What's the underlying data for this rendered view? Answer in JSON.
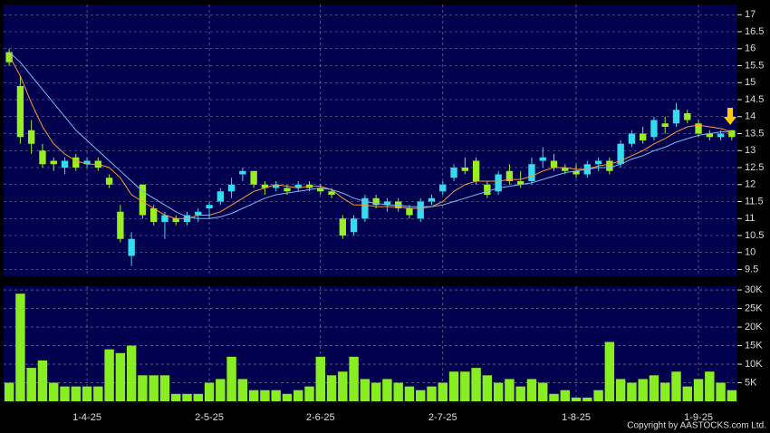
{
  "chart_data": [
    {
      "type": "candlestick",
      "open": [
        15.9,
        14.9,
        13.6,
        13.0,
        12.7,
        12.5,
        12.8,
        12.6,
        12.7,
        12.2,
        11.2,
        9.9,
        12.0,
        11.3,
        10.9,
        11.0,
        10.9,
        11.1,
        11.3,
        11.5,
        11.8,
        12.3,
        12.4,
        12.0,
        11.9,
        11.9,
        11.9,
        12.0,
        11.9,
        11.8,
        11.0,
        10.6,
        11.0,
        11.6,
        11.4,
        11.5,
        11.3,
        11.0,
        11.5,
        11.8,
        12.2,
        12.5,
        12.7,
        12.0,
        11.8,
        12.4,
        12.1,
        12.1,
        12.7,
        12.7,
        12.5,
        12.4,
        12.3,
        12.6,
        12.7,
        12.6,
        13.2,
        13.5,
        13.4,
        13.8,
        13.8,
        14.1,
        13.8,
        13.5,
        13.4,
        13.6
      ],
      "high": [
        16.0,
        15.2,
        13.9,
        13.2,
        12.8,
        12.8,
        12.9,
        12.8,
        12.8,
        12.3,
        11.4,
        10.6,
        12.0,
        11.4,
        11.2,
        11.1,
        11.2,
        11.3,
        11.5,
        11.9,
        12.2,
        12.5,
        12.4,
        12.1,
        12.1,
        12.0,
        12.1,
        12.1,
        12.0,
        11.9,
        11.1,
        11.1,
        11.7,
        11.7,
        11.6,
        11.6,
        11.4,
        11.6,
        11.7,
        12.1,
        12.6,
        12.8,
        12.8,
        12.1,
        12.4,
        12.6,
        12.4,
        12.8,
        13.1,
        12.9,
        12.6,
        12.6,
        12.7,
        12.8,
        12.8,
        13.3,
        13.6,
        13.7,
        14.0,
        14.0,
        14.4,
        14.2,
        13.9,
        13.6,
        13.6,
        13.6
      ],
      "low": [
        15.5,
        13.2,
        12.9,
        12.5,
        12.4,
        12.3,
        12.4,
        12.5,
        12.4,
        11.9,
        10.3,
        9.6,
        11.0,
        10.8,
        10.4,
        10.8,
        10.8,
        10.9,
        11.0,
        11.4,
        11.6,
        12.1,
        11.9,
        11.7,
        11.8,
        11.7,
        11.8,
        11.8,
        11.7,
        11.6,
        10.4,
        10.5,
        10.9,
        11.3,
        11.2,
        11.2,
        11.0,
        10.9,
        11.4,
        11.7,
        12.1,
        12.3,
        12.0,
        11.6,
        11.7,
        12.0,
        11.9,
        12.0,
        12.5,
        12.4,
        12.3,
        12.2,
        12.2,
        12.4,
        12.3,
        12.5,
        13.1,
        13.2,
        13.3,
        13.5,
        13.7,
        13.8,
        13.4,
        13.3,
        13.3,
        13.3
      ],
      "close": [
        15.6,
        13.4,
        13.2,
        12.6,
        12.6,
        12.7,
        12.5,
        12.7,
        12.5,
        12.0,
        10.4,
        10.4,
        11.1,
        10.9,
        11.1,
        10.9,
        11.1,
        11.2,
        11.4,
        11.8,
        12.0,
        12.4,
        12.0,
        11.9,
        12.0,
        11.8,
        12.0,
        11.9,
        11.8,
        11.7,
        10.5,
        11.0,
        11.6,
        11.4,
        11.5,
        11.3,
        11.1,
        11.5,
        11.6,
        12.0,
        12.5,
        12.4,
        12.1,
        11.7,
        12.3,
        12.1,
        12.0,
        12.6,
        12.8,
        12.5,
        12.4,
        12.3,
        12.6,
        12.7,
        12.4,
        13.2,
        13.5,
        13.3,
        13.9,
        13.7,
        14.2,
        13.9,
        13.5,
        13.4,
        13.5,
        13.4
      ],
      "up_color": "#33ddee",
      "down_color": "#99ee22",
      "lines": [
        {
          "color": "#ff9933",
          "values": [
            15.8,
            15.2,
            14.4,
            13.7,
            13.2,
            12.9,
            12.7,
            12.6,
            12.6,
            12.5,
            12.2,
            11.7,
            11.5,
            11.3,
            11.1,
            11.0,
            11.0,
            11.1,
            11.1,
            11.2,
            11.4,
            11.6,
            11.8,
            11.9,
            12.0,
            11.95,
            11.9,
            11.95,
            11.95,
            11.85,
            11.6,
            11.4,
            11.4,
            11.35,
            11.35,
            11.35,
            11.3,
            11.3,
            11.35,
            11.5,
            11.8,
            12.0,
            12.1,
            12.1,
            12.1,
            12.15,
            12.15,
            12.25,
            12.4,
            12.5,
            12.5,
            12.45,
            12.45,
            12.55,
            12.6,
            12.7,
            12.85,
            13.0,
            13.2,
            13.35,
            13.55,
            13.7,
            13.75,
            13.7,
            13.65,
            13.55
          ]
        },
        {
          "color": "#77bbee",
          "values": [
            15.9,
            15.6,
            15.2,
            14.8,
            14.4,
            14.0,
            13.6,
            13.3,
            13.0,
            12.7,
            12.4,
            12.1,
            11.8,
            11.6,
            11.4,
            11.2,
            11.05,
            11.0,
            11.0,
            11.05,
            11.15,
            11.3,
            11.45,
            11.6,
            11.7,
            11.75,
            11.8,
            11.85,
            11.9,
            11.85,
            11.75,
            11.6,
            11.5,
            11.45,
            11.4,
            11.4,
            11.35,
            11.35,
            11.35,
            11.4,
            11.5,
            11.6,
            11.7,
            11.8,
            11.9,
            11.95,
            12.0,
            12.05,
            12.15,
            12.25,
            12.35,
            12.4,
            12.45,
            12.5,
            12.5,
            12.6,
            12.75,
            12.85,
            13.0,
            13.1,
            13.25,
            13.35,
            13.45,
            13.5,
            13.55,
            13.55
          ]
        }
      ],
      "ylim": [
        9.3,
        17.3
      ],
      "yticks": [
        9.5,
        10,
        10.5,
        11,
        11.5,
        12,
        12.5,
        13,
        13.5,
        14,
        14.5,
        15,
        15.5,
        16,
        16.5,
        17
      ],
      "grid": true
    },
    {
      "type": "bar",
      "categories": [
        null,
        null,
        null,
        null,
        null,
        null,
        null,
        "1-4-25",
        null,
        null,
        null,
        null,
        null,
        null,
        null,
        null,
        null,
        null,
        "2-5-25",
        null,
        null,
        null,
        null,
        null,
        null,
        null,
        null,
        null,
        "2-6-25",
        null,
        null,
        null,
        null,
        null,
        null,
        null,
        null,
        null,
        null,
        "2-7-25",
        null,
        null,
        null,
        null,
        null,
        null,
        null,
        null,
        null,
        null,
        null,
        "1-8-25",
        null,
        null,
        null,
        null,
        null,
        null,
        null,
        null,
        null,
        null,
        "1-9-25",
        null,
        null,
        null
      ],
      "values": [
        5000,
        29000,
        9000,
        11000,
        5000,
        4000,
        4000,
        4000,
        4000,
        14000,
        13000,
        15000,
        7000,
        7000,
        7000,
        2000,
        2000,
        2000,
        5000,
        6000,
        12000,
        6000,
        3000,
        3000,
        3000,
        2000,
        3000,
        4000,
        12000,
        7000,
        8000,
        12000,
        6000,
        5000,
        6000,
        5000,
        4000,
        3000,
        4000,
        5000,
        8000,
        8000,
        9000,
        7000,
        5000,
        6000,
        4000,
        6000,
        5000,
        2000,
        3000,
        1000,
        1000,
        3000,
        16000,
        6000,
        5000,
        6000,
        7000,
        5000,
        8000,
        4000,
        6000,
        8000,
        5000,
        3000
      ],
      "color": "#88ee22",
      "ylim": [
        0,
        31000
      ],
      "yticks": [
        {
          "value": 5000,
          "label": "5K"
        },
        {
          "value": 10000,
          "label": "10K"
        },
        {
          "value": 15000,
          "label": "15K"
        },
        {
          "value": 20000,
          "label": "20K"
        },
        {
          "value": 25000,
          "label": "25K"
        },
        {
          "value": 30000,
          "label": "30K"
        }
      ],
      "grid": true
    }
  ],
  "copyright": "Copyright by AASTOCKS.com Ltd."
}
